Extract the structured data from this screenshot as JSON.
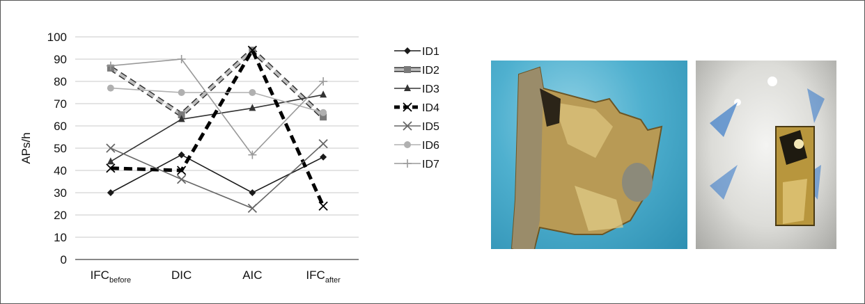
{
  "chart_data": {
    "type": "line",
    "title": "",
    "ylabel": "APs/h",
    "xlabel": "",
    "ylim": [
      0,
      100
    ],
    "yticks": [
      0,
      10,
      20,
      30,
      40,
      50,
      60,
      70,
      80,
      90,
      100
    ],
    "grid": "horizontal",
    "legend_position": "right",
    "categories": [
      {
        "main": "IFC",
        "sub": "before"
      },
      {
        "main": "DIC",
        "sub": ""
      },
      {
        "main": "AIC",
        "sub": ""
      },
      {
        "main": "IFC",
        "sub": "after"
      }
    ],
    "series": [
      {
        "name": "ID1",
        "values": [
          30,
          47,
          30,
          46
        ],
        "color": "#1a1a1a",
        "marker": "diamond",
        "style": "solid"
      },
      {
        "name": "ID2",
        "values": [
          86,
          65,
          94,
          64
        ],
        "color": "#7a7a7a",
        "marker": "square",
        "style": "dashed-thick"
      },
      {
        "name": "ID3",
        "values": [
          44,
          63,
          68,
          74
        ],
        "color": "#333333",
        "marker": "triangle",
        "style": "solid"
      },
      {
        "name": "ID4",
        "values": [
          41,
          40,
          94,
          24
        ],
        "color": "#000000",
        "marker": "x",
        "style": "dashed-bold"
      },
      {
        "name": "ID5",
        "values": [
          50,
          36,
          23,
          52
        ],
        "color": "#666666",
        "marker": "x",
        "style": "solid"
      },
      {
        "name": "ID6",
        "values": [
          77,
          75,
          75,
          66
        ],
        "color": "#b0b0b0",
        "marker": "circle",
        "style": "solid"
      },
      {
        "name": "ID7",
        "values": [
          87,
          90,
          47,
          80
        ],
        "color": "#999999",
        "marker": "plus",
        "style": "solid"
      }
    ]
  },
  "photos": [
    {
      "icon": "gold-crown-fragment-photo",
      "background": "#4fb0cf"
    },
    {
      "icon": "tooth-occlusal-photo",
      "background": "#dcdcd8"
    }
  ]
}
